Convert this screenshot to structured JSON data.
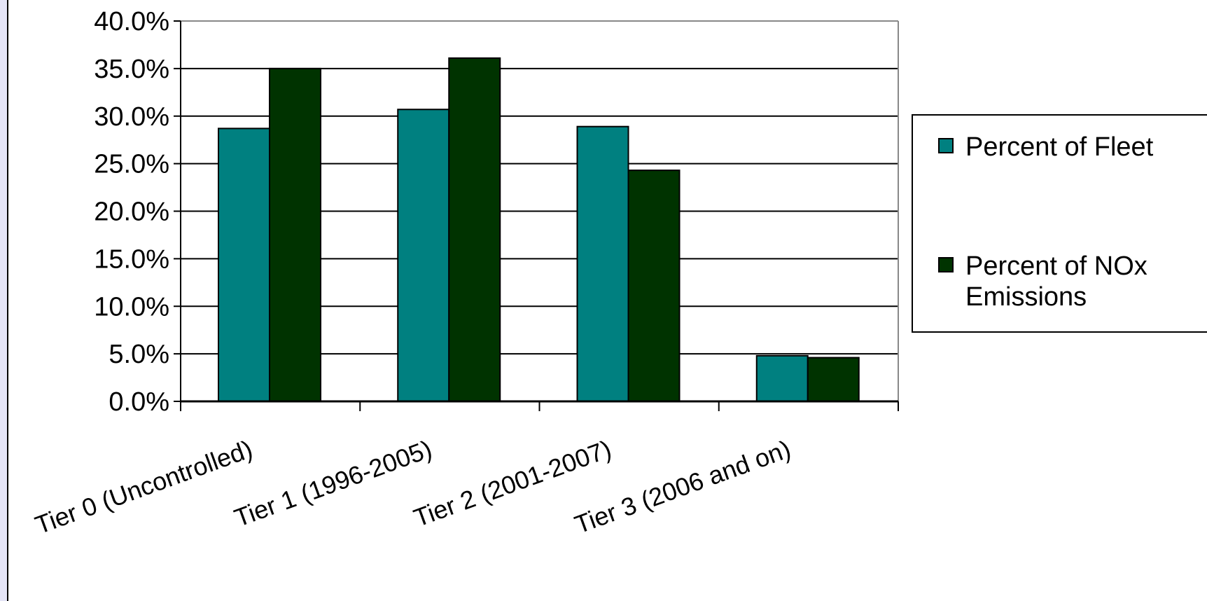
{
  "chart_data": {
    "type": "bar",
    "categories": [
      "Tier 0 (Uncontrolled)",
      "Tier 1 (1996-2005)",
      "Tier 2 (2001-2007)",
      "Tier 3 (2006 and on)"
    ],
    "series": [
      {
        "name": "Percent of Fleet",
        "legend_lines": [
          "Percent of Fleet"
        ],
        "color": "#008080",
        "values": [
          28.7,
          30.7,
          28.9,
          4.8
        ]
      },
      {
        "name": "Percent of NOx Emissions",
        "legend_lines": [
          "Percent of NOx",
          "Emissions"
        ],
        "color": "#003300",
        "values": [
          35.0,
          36.1,
          24.3,
          4.6
        ]
      }
    ],
    "yticks": [
      "0.0%",
      "5.0%",
      "10.0%",
      "15.0%",
      "20.0%",
      "25.0%",
      "30.0%",
      "35.0%",
      "40.0%"
    ],
    "ylim": [
      0,
      40
    ],
    "grid": true,
    "legend_position": "right"
  }
}
